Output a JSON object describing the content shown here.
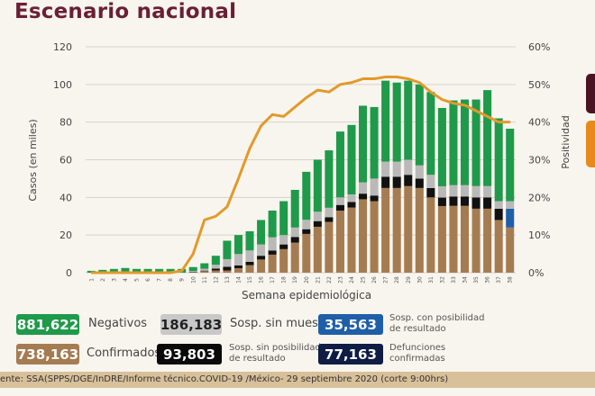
{
  "title": "Escenario nacional",
  "colors": {
    "confirmados": "#a57c52",
    "sin_posibilidad": "#111111",
    "con_posibilidad": "#1f5fa8",
    "sin_muestra": "#b9b9b9",
    "negativos": "#1f9a4a",
    "positividad": "#e29a2b",
    "title": "#6a1f35",
    "defunciones": "#0f1d45"
  },
  "chart_data": {
    "type": "bar",
    "stacked": true,
    "title": "Escenario nacional",
    "xlabel": "Semana epidemiológica",
    "ylabel": "Casos (en miles)",
    "y2label": "Positividad",
    "ylim": [
      0,
      120
    ],
    "y2lim": [
      0,
      60
    ],
    "yticks": [
      "0",
      "20",
      "40",
      "60",
      "80",
      "100",
      "120"
    ],
    "y2ticks": [
      "0%",
      "10%",
      "20%",
      "30%",
      "40%",
      "50%",
      "60%"
    ],
    "categories": [
      "1",
      "2",
      "3",
      "4",
      "5",
      "6",
      "7",
      "8",
      "9",
      "10",
      "11",
      "12",
      "13",
      "14",
      "15",
      "16",
      "17",
      "18",
      "19",
      "20",
      "21",
      "22",
      "23",
      "24",
      "25",
      "26",
      "27",
      "28",
      "29",
      "30",
      "31",
      "32",
      "33",
      "34",
      "35",
      "36",
      "37",
      "38"
    ],
    "series": [
      {
        "name": "Confirmados",
        "color": "#a57c52",
        "values": [
          0,
          0,
          0,
          0,
          0,
          0,
          0,
          0,
          0,
          0.3,
          0.8,
          1.2,
          1.2,
          2.4,
          4,
          7,
          9.6,
          12.5,
          16,
          20.6,
          24.4,
          27,
          33,
          34.6,
          39,
          38,
          45,
          45,
          46,
          45,
          40,
          35.4,
          35.5,
          35.5,
          34,
          34,
          28,
          24
        ]
      },
      {
        "name": "Sosp. con posibilidad de resultado",
        "color": "#1f5fa8",
        "values": [
          0,
          0,
          0,
          0,
          0,
          0,
          0,
          0,
          0,
          0,
          0,
          0,
          0,
          0,
          0,
          0,
          0,
          0,
          0,
          0,
          0,
          0,
          0,
          0,
          0,
          0,
          0,
          0,
          0,
          0,
          0,
          0,
          0,
          0,
          0,
          0,
          0,
          10
        ]
      },
      {
        "name": "Sosp. sin posibilidad de resultado",
        "color": "#111111",
        "values": [
          0,
          0,
          0,
          0,
          0,
          0,
          0,
          0,
          0,
          0.1,
          0.3,
          1,
          2,
          1.5,
          1.8,
          2,
          2.2,
          2.5,
          3,
          2.5,
          3,
          2.5,
          3,
          3,
          3,
          3,
          6,
          6,
          6,
          5,
          5,
          4.5,
          5,
          5,
          6,
          6,
          6,
          0
        ]
      },
      {
        "name": "Sosp. sin muestra",
        "color": "#b9b9b9",
        "values": [
          0,
          0,
          0,
          0,
          0,
          0,
          0,
          0,
          0,
          0.5,
          1,
          2,
          4,
          6,
          6,
          6,
          7,
          5,
          5,
          5,
          5,
          5,
          4,
          4,
          6,
          9,
          8,
          8,
          8,
          7,
          7,
          6,
          6,
          6,
          6,
          6,
          4,
          4
        ]
      },
      {
        "name": "Negativos",
        "color": "#1f9a4a",
        "values": [
          1,
          1.5,
          2,
          2.5,
          2,
          2,
          2,
          2,
          2,
          2.1,
          2.9,
          4.8,
          9.8,
          10.1,
          10.2,
          13,
          14.2,
          18,
          20,
          25.5,
          27.6,
          30.5,
          35,
          36.9,
          40.7,
          38,
          43,
          42,
          42,
          43,
          44,
          41.6,
          45,
          45.5,
          46,
          51,
          44,
          38.5
        ]
      }
    ],
    "line": {
      "name": "Positividad",
      "axis": "right",
      "unit": "%",
      "color": "#e29a2b",
      "values": [
        0,
        0,
        0,
        0,
        0,
        0,
        0,
        0,
        0.5,
        5,
        14,
        15,
        17.5,
        25,
        33,
        39,
        42,
        41.5,
        44,
        46.5,
        48.5,
        48,
        50,
        50.5,
        51.5,
        51.5,
        52,
        52,
        51.5,
        50.5,
        48,
        46,
        45,
        44.5,
        43,
        41.5,
        40,
        40
      ]
    }
  },
  "summary": [
    {
      "value": "881,622",
      "label": "Negativos"
    },
    {
      "value": "738,163",
      "label": "Confirmados"
    },
    {
      "value": "186,183",
      "label": "Sosp. sin muestra"
    },
    {
      "value": "93,803",
      "label_line1": "Sosp. sin posibilidad",
      "label_line2": "de resultado"
    },
    {
      "value": "35,563",
      "label_line1": "Sosp. con posibilidad",
      "label_line2": "de resultado"
    },
    {
      "value": "77,163",
      "label_line1": "Defunciones",
      "label_line2": "confirmadas"
    }
  ],
  "footer": "ente: SSA(SPPS/DGE/InDRE/Informe técnico.COVID-19 /México- 29 septiembre 2020 (corte 9:00hrs)"
}
